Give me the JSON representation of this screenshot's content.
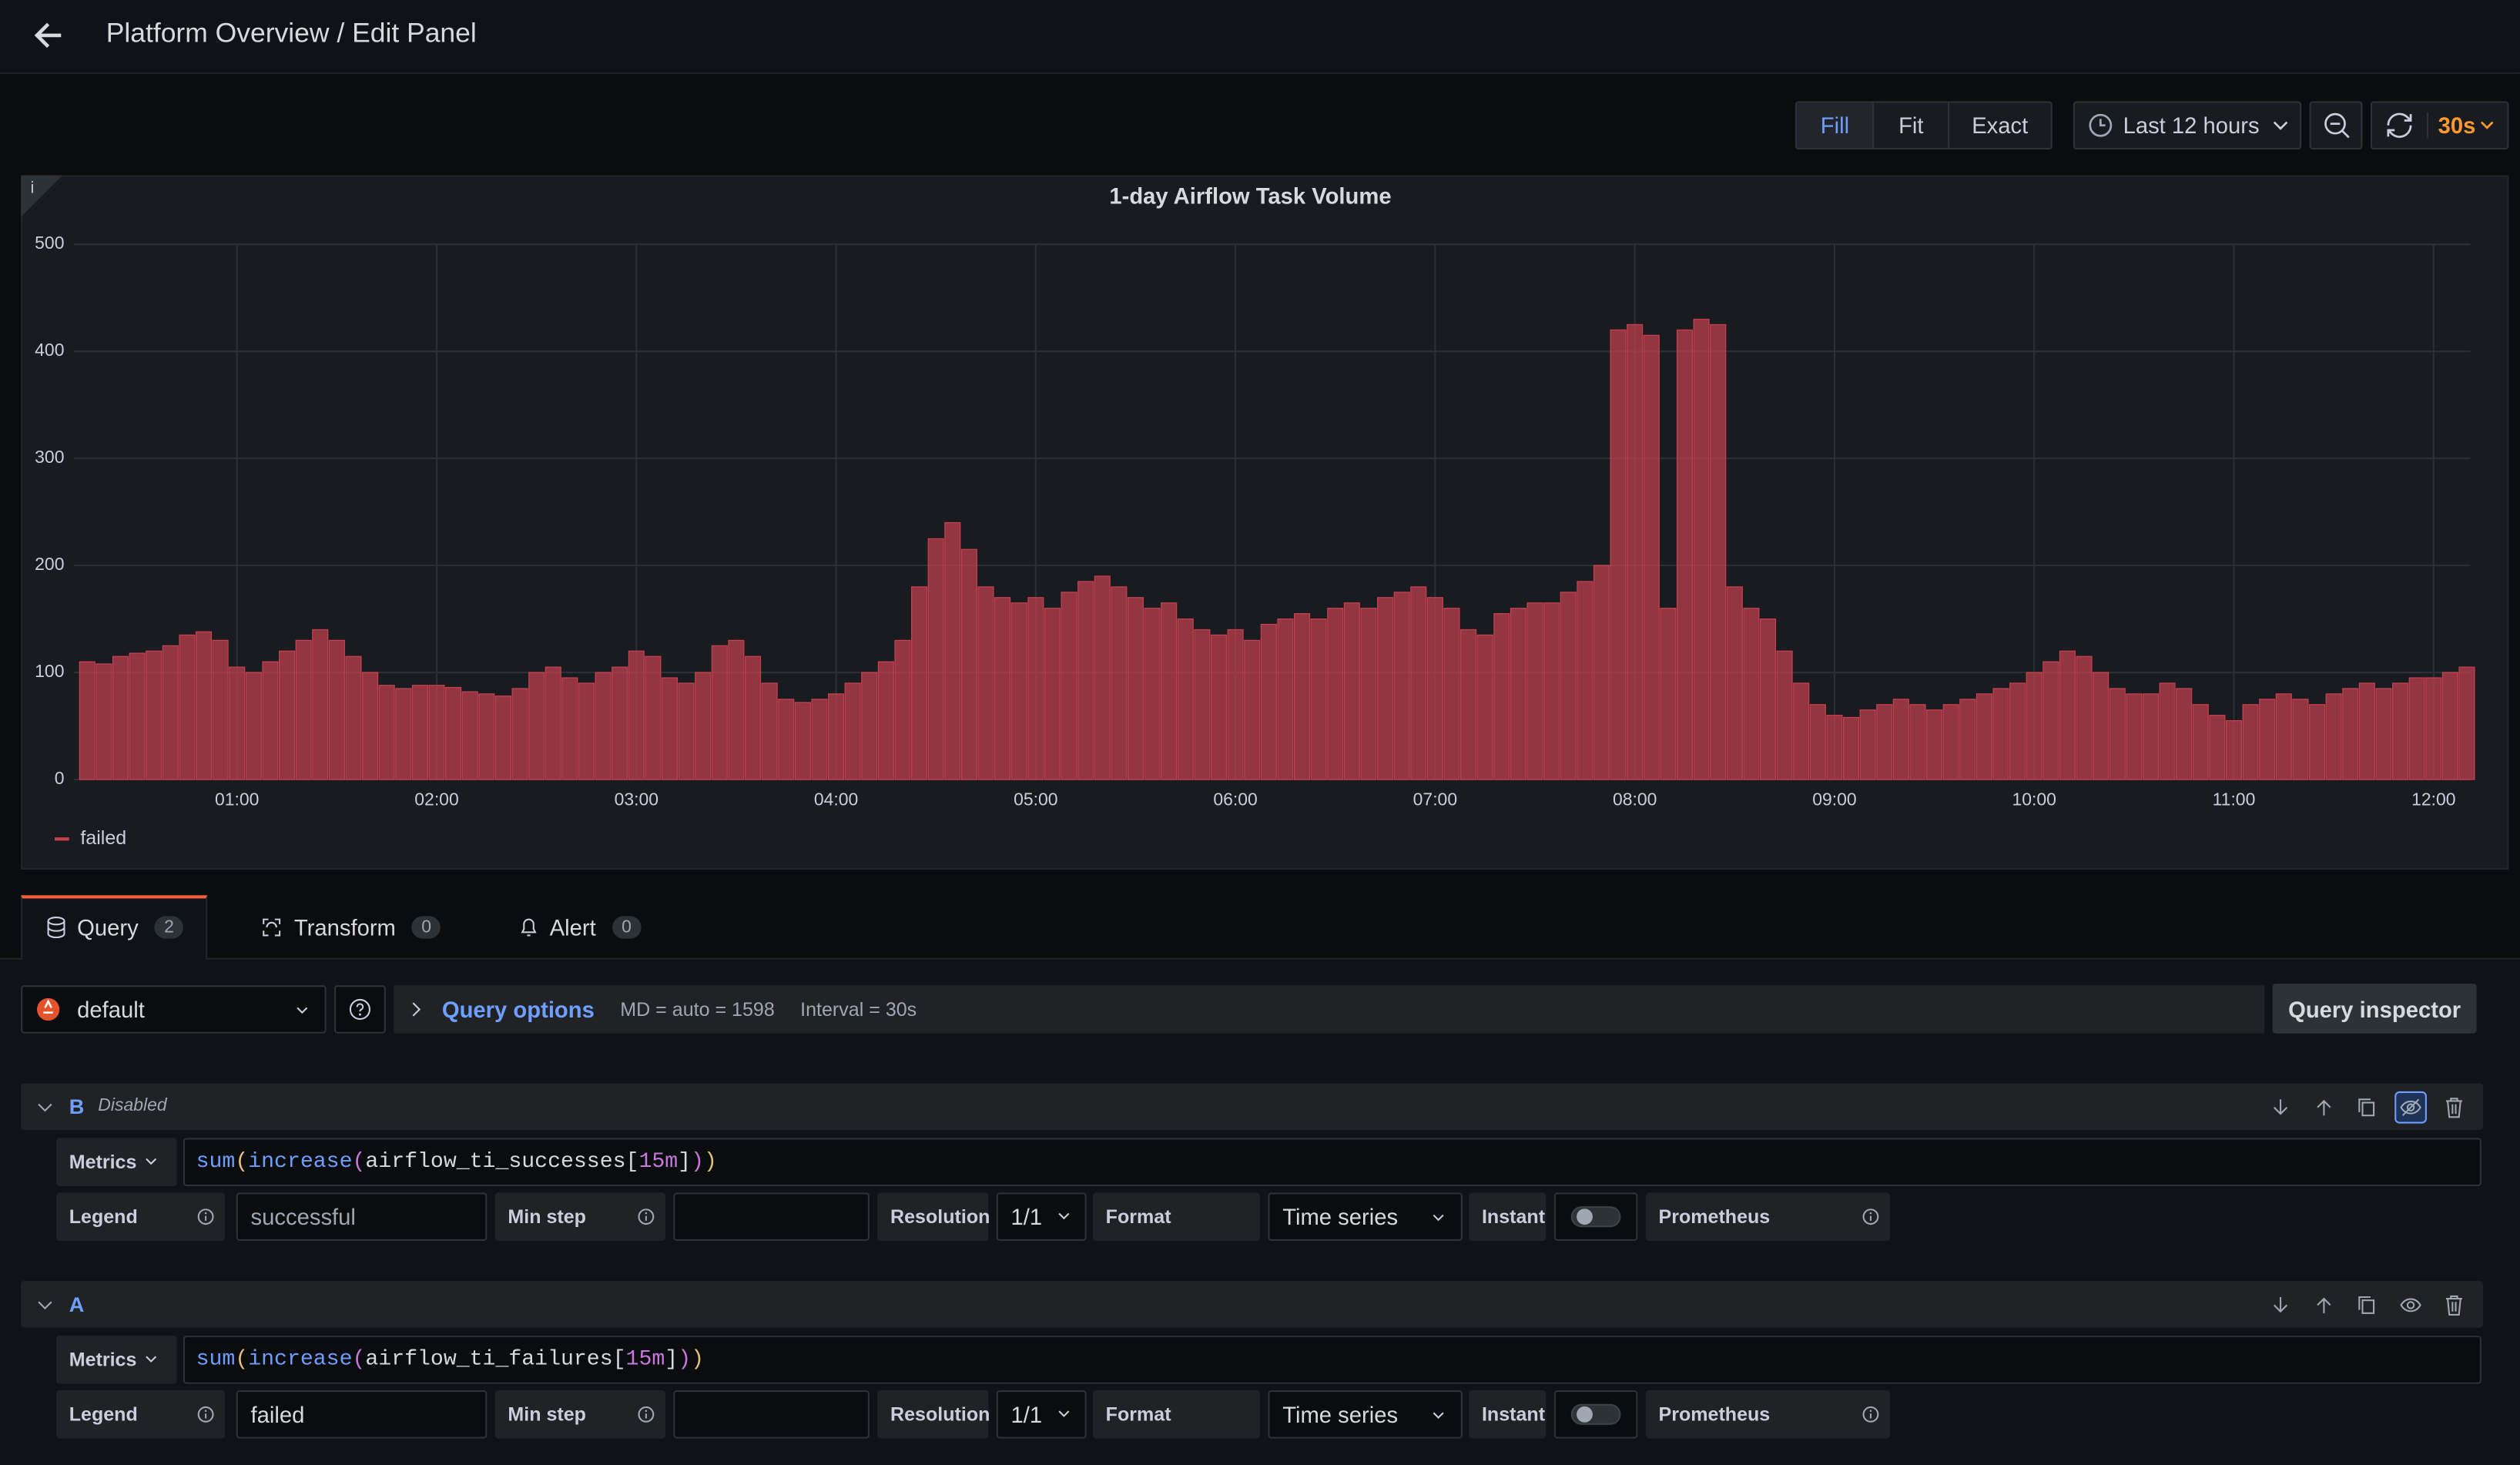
{
  "header": {
    "title": "Platform Overview / Edit Panel"
  },
  "toolbar": {
    "modes": [
      "Fill",
      "Fit",
      "Exact"
    ],
    "time_range": "Last 12 hours",
    "refresh": "30s"
  },
  "chart_data": {
    "type": "bar",
    "title": "1-day Airflow Task Volume",
    "x": [
      "00:15",
      "00:20",
      "00:25",
      "00:30",
      "00:35",
      "00:40",
      "00:45",
      "00:50",
      "00:55",
      "01:00",
      "01:05",
      "01:10",
      "01:15",
      "01:20",
      "01:25",
      "01:30",
      "01:35",
      "01:40",
      "01:45",
      "01:50",
      "01:55",
      "02:00",
      "02:05",
      "02:10",
      "02:15",
      "02:20",
      "02:25",
      "02:30",
      "02:35",
      "02:40",
      "02:45",
      "02:50",
      "02:55",
      "03:00",
      "03:05",
      "03:10",
      "03:15",
      "03:20",
      "03:25",
      "03:30",
      "03:35",
      "03:40",
      "03:45",
      "03:50",
      "03:55",
      "04:00",
      "04:05",
      "04:10",
      "04:15",
      "04:20",
      "04:25",
      "04:30",
      "04:35",
      "04:40",
      "04:45",
      "04:50",
      "04:55",
      "05:00",
      "05:05",
      "05:10",
      "05:15",
      "05:20",
      "05:25",
      "05:30",
      "05:35",
      "05:40",
      "05:45",
      "05:50",
      "05:55",
      "06:00",
      "06:05",
      "06:10",
      "06:15",
      "06:20",
      "06:25",
      "06:30",
      "06:35",
      "06:40",
      "06:45",
      "06:50",
      "06:55",
      "07:00",
      "07:05",
      "07:10",
      "07:15",
      "07:20",
      "07:25",
      "07:30",
      "07:35",
      "07:40",
      "07:45",
      "07:50",
      "07:55",
      "08:00",
      "08:05",
      "08:10",
      "08:15",
      "08:20",
      "08:25",
      "08:30",
      "08:35",
      "08:40",
      "08:45",
      "08:50",
      "08:55",
      "09:00",
      "09:05",
      "09:10",
      "09:15",
      "09:20",
      "09:25",
      "09:30",
      "09:35",
      "09:40",
      "09:45",
      "09:50",
      "09:55",
      "10:00",
      "10:05",
      "10:10",
      "10:15",
      "10:20",
      "10:25",
      "10:30",
      "10:35",
      "10:40",
      "10:45",
      "10:50",
      "10:55",
      "11:00",
      "11:05",
      "11:10",
      "11:15",
      "11:20",
      "11:25",
      "11:30",
      "11:35",
      "11:40",
      "11:45",
      "11:50",
      "11:55",
      "12:00",
      "12:05",
      "12:10"
    ],
    "series": [
      {
        "name": "failed",
        "color": "#c4414f",
        "values": [
          110,
          108,
          115,
          118,
          120,
          125,
          135,
          138,
          130,
          105,
          100,
          110,
          120,
          130,
          140,
          130,
          115,
          100,
          88,
          85,
          88,
          88,
          86,
          82,
          80,
          78,
          85,
          100,
          105,
          95,
          90,
          100,
          105,
          120,
          115,
          95,
          90,
          100,
          125,
          130,
          115,
          90,
          75,
          72,
          75,
          80,
          90,
          100,
          110,
          130,
          180,
          225,
          240,
          215,
          180,
          170,
          165,
          170,
          160,
          175,
          185,
          190,
          180,
          170,
          160,
          165,
          150,
          140,
          135,
          140,
          130,
          145,
          150,
          155,
          150,
          160,
          165,
          160,
          170,
          175,
          180,
          170,
          160,
          140,
          135,
          155,
          160,
          165,
          165,
          175,
          185,
          200,
          420,
          425,
          415,
          160,
          420,
          430,
          425,
          180,
          160,
          150,
          120,
          90,
          70,
          60,
          58,
          65,
          70,
          75,
          70,
          65,
          70,
          75,
          80,
          85,
          90,
          100,
          110,
          120,
          115,
          100,
          85,
          80,
          80,
          90,
          85,
          70,
          60,
          55,
          70,
          75,
          80,
          75,
          70,
          80,
          85,
          90,
          85,
          90,
          95,
          95,
          100,
          105
        ]
      }
    ],
    "xlim": [
      "00:11",
      "12:11"
    ],
    "xticks": [
      "01:00",
      "02:00",
      "03:00",
      "04:00",
      "05:00",
      "06:00",
      "07:00",
      "08:00",
      "09:00",
      "10:00",
      "11:00",
      "12:00"
    ],
    "ylim": [
      0,
      500
    ],
    "yticks": [
      0,
      100,
      200,
      300,
      400,
      500
    ],
    "grid": true,
    "legend": "bottom-left"
  },
  "tabs": [
    {
      "label": "Query",
      "count": 2
    },
    {
      "label": "Transform",
      "count": 0
    },
    {
      "label": "Alert",
      "count": 0
    }
  ],
  "datasource": "default",
  "query_options": {
    "label": "Query options",
    "max_data_points": "MD = auto = 1598",
    "interval": "Interval = 30s"
  },
  "query_inspector": "Query inspector",
  "queries": [
    {
      "ref": "B",
      "status": "Disabled",
      "metrics_label": "Metrics",
      "expr": [
        {
          "text": "sum",
          "color": "#6e9fff"
        },
        {
          "text": "(",
          "color": "#e5c07b"
        },
        {
          "text": "increase",
          "color": "#6e9fff"
        },
        {
          "text": "(",
          "color": "#c678dd"
        },
        {
          "text": "airflow_ti_successes",
          "color": "#d8d9da"
        },
        {
          "text": "[",
          "color": "#d8d9da"
        },
        {
          "text": "15m",
          "color": "#c678dd"
        },
        {
          "text": "]",
          "color": "#d8d9da"
        },
        {
          "text": ")",
          "color": "#c678dd"
        },
        {
          "text": ")",
          "color": "#e5c07b"
        }
      ],
      "legend_label": "Legend",
      "legend": "successful",
      "min_step_label": "Min step",
      "resolution_label": "Resolution",
      "resolution": "1/1",
      "format_label": "Format",
      "format": "Time series",
      "instant_label": "Instant",
      "type_label": "Prometheus"
    },
    {
      "ref": "A",
      "metrics_label": "Metrics",
      "expr": [
        {
          "text": "sum",
          "color": "#6e9fff"
        },
        {
          "text": "(",
          "color": "#e5c07b"
        },
        {
          "text": "increase",
          "color": "#6e9fff"
        },
        {
          "text": "(",
          "color": "#c678dd"
        },
        {
          "text": "airflow_ti_failures",
          "color": "#d8d9da"
        },
        {
          "text": "[",
          "color": "#d8d9da"
        },
        {
          "text": "15m",
          "color": "#c678dd"
        },
        {
          "text": "]",
          "color": "#d8d9da"
        },
        {
          "text": ")",
          "color": "#c678dd"
        },
        {
          "text": ")",
          "color": "#e5c07b"
        }
      ],
      "legend_label": "Legend",
      "legend": "failed",
      "min_step_label": "Min step",
      "resolution_label": "Resolution",
      "resolution": "1/1",
      "format_label": "Format",
      "format": "Time series",
      "instant_label": "Instant",
      "type_label": "Prometheus"
    }
  ]
}
